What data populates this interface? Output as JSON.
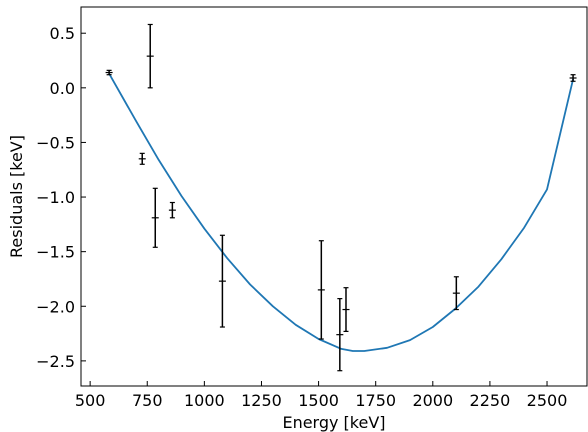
{
  "chart_data": {
    "type": "scatter",
    "title": "",
    "xlabel": "Energy [keV]",
    "ylabel": "Residuals [keV]",
    "xlim": [
      460,
      2675
    ],
    "ylim": [
      -2.73,
      0.74
    ],
    "xticks": [
      500,
      750,
      1000,
      1250,
      1500,
      1750,
      2000,
      2250,
      2500
    ],
    "xtick_labels": [
      "500",
      "750",
      "1000",
      "1250",
      "1500",
      "1750",
      "2000",
      "2250",
      "2500"
    ],
    "yticks": [
      0.5,
      0.0,
      -0.5,
      -1.0,
      -1.5,
      -2.0,
      -2.5
    ],
    "ytick_labels": [
      "0.5",
      "0.0",
      "−0.5",
      "−1.0",
      "−1.5",
      "−2.0",
      "−2.5"
    ],
    "grid": false,
    "tick_direction": "in",
    "points": [
      {
        "x": 583,
        "y": 0.14,
        "yerr": 0.02
      },
      {
        "x": 728,
        "y": -0.65,
        "yerr": 0.05
      },
      {
        "x": 763,
        "y": 0.29,
        "yerr": 0.29
      },
      {
        "x": 785,
        "y": -1.19,
        "yerr": 0.27
      },
      {
        "x": 860,
        "y": -1.12,
        "yerr": 0.07
      },
      {
        "x": 1079,
        "y": -1.77,
        "yerr": 0.42
      },
      {
        "x": 1512,
        "y": -1.85,
        "yerr": 0.45
      },
      {
        "x": 1593,
        "y": -2.26,
        "yerr": 0.33
      },
      {
        "x": 1620,
        "y": -2.03,
        "yerr": 0.2
      },
      {
        "x": 2103,
        "y": -1.88,
        "yerr": 0.15
      },
      {
        "x": 2614,
        "y": 0.09,
        "yerr": 0.03
      }
    ],
    "fit_curve": {
      "color": "#1f77b4",
      "x": [
        583,
        700,
        800,
        900,
        1000,
        1100,
        1200,
        1300,
        1400,
        1500,
        1600,
        1650,
        1700,
        1800,
        1900,
        2000,
        2100,
        2200,
        2300,
        2400,
        2500,
        2614
      ],
      "y": [
        0.13,
        -0.3,
        -0.66,
        -0.99,
        -1.29,
        -1.56,
        -1.8,
        -2.0,
        -2.17,
        -2.3,
        -2.39,
        -2.41,
        -2.41,
        -2.38,
        -2.31,
        -2.19,
        -2.02,
        -1.82,
        -1.57,
        -1.28,
        -0.93,
        0.08
      ]
    },
    "errorbar_color": "#000000"
  }
}
